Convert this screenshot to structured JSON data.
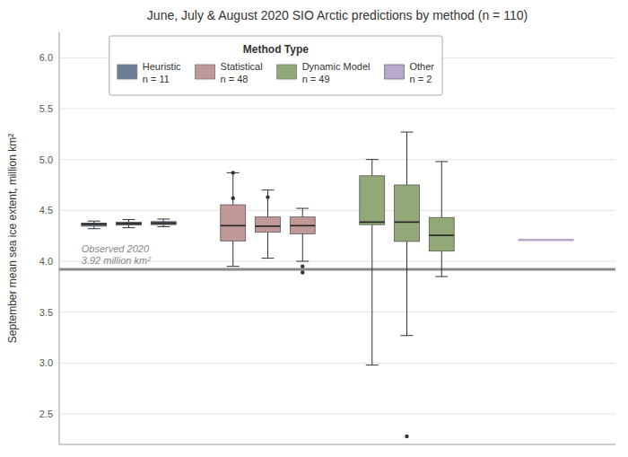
{
  "chart_data": {
    "type": "box",
    "title": "June, July & August 2020 SIO Arctic predictions by method (n = 110)",
    "ylabel": "September mean sea ice extent, million km²",
    "ylim": [
      2.2,
      6.25
    ],
    "yticks": [
      2.5,
      {
        "value": 3.0,
        "label": "3.0"
      },
      3.5,
      {
        "value": 4.0,
        "label": "4.0"
      },
      4.5,
      {
        "value": 5.0,
        "label": "5.0"
      },
      5.5,
      {
        "value": 6.0,
        "label": "6.0"
      }
    ],
    "grid": true,
    "tick_labels": "y",
    "legend": "upper left",
    "legend_title": "Method Type",
    "series": [
      {
        "name": "Heuristic",
        "n_label": "n = 11",
        "color": "#6b7f96",
        "type": "box",
        "boxes": [
          {
            "q1": 4.345,
            "median": 4.365,
            "q3": 4.375,
            "whislo": 4.32,
            "whishi": 4.395,
            "fliers": []
          },
          {
            "q1": 4.355,
            "median": 4.37,
            "q3": 4.385,
            "whislo": 4.33,
            "whishi": 4.41,
            "fliers": []
          },
          {
            "q1": 4.36,
            "median": 4.375,
            "q3": 4.39,
            "whislo": 4.34,
            "whishi": 4.415,
            "fliers": []
          }
        ]
      },
      {
        "name": "Statistical",
        "n_label": "n = 48",
        "color": "#c09898",
        "type": "box",
        "boxes": [
          {
            "q1": 4.2,
            "median": 4.35,
            "q3": 4.555,
            "whislo": 3.95,
            "whishi": 4.87,
            "fliers": [
              4.87,
              4.62
            ]
          },
          {
            "q1": 4.285,
            "median": 4.345,
            "q3": 4.435,
            "whislo": 4.03,
            "whishi": 4.7,
            "fliers": [
              4.63
            ]
          },
          {
            "q1": 4.27,
            "median": 4.35,
            "q3": 4.435,
            "whislo": 4.0,
            "whishi": 4.52,
            "fliers": [
              3.95,
              3.89
            ]
          }
        ]
      },
      {
        "name": "Dynamic Model",
        "n_label": "n = 49",
        "color": "#92a876",
        "type": "box",
        "boxes": [
          {
            "q1": 4.36,
            "median": 4.385,
            "q3": 4.84,
            "whislo": 2.98,
            "whishi": 5.0,
            "fliers": []
          },
          {
            "q1": 4.195,
            "median": 4.385,
            "q3": 4.75,
            "whislo": 3.27,
            "whishi": 5.27,
            "fliers": [
              2.28
            ]
          },
          {
            "q1": 4.1,
            "median": 4.255,
            "q3": 4.43,
            "whislo": 3.85,
            "whishi": 4.98,
            "fliers": []
          }
        ]
      },
      {
        "name": "Other",
        "n_label": "n = 2",
        "color": "#b8a8cc",
        "type": "line",
        "values": [
          4.21
        ]
      }
    ],
    "reference_lines": [
      {
        "value": 3.92,
        "label": "Observed 2020\n3.92 million km²"
      }
    ]
  }
}
